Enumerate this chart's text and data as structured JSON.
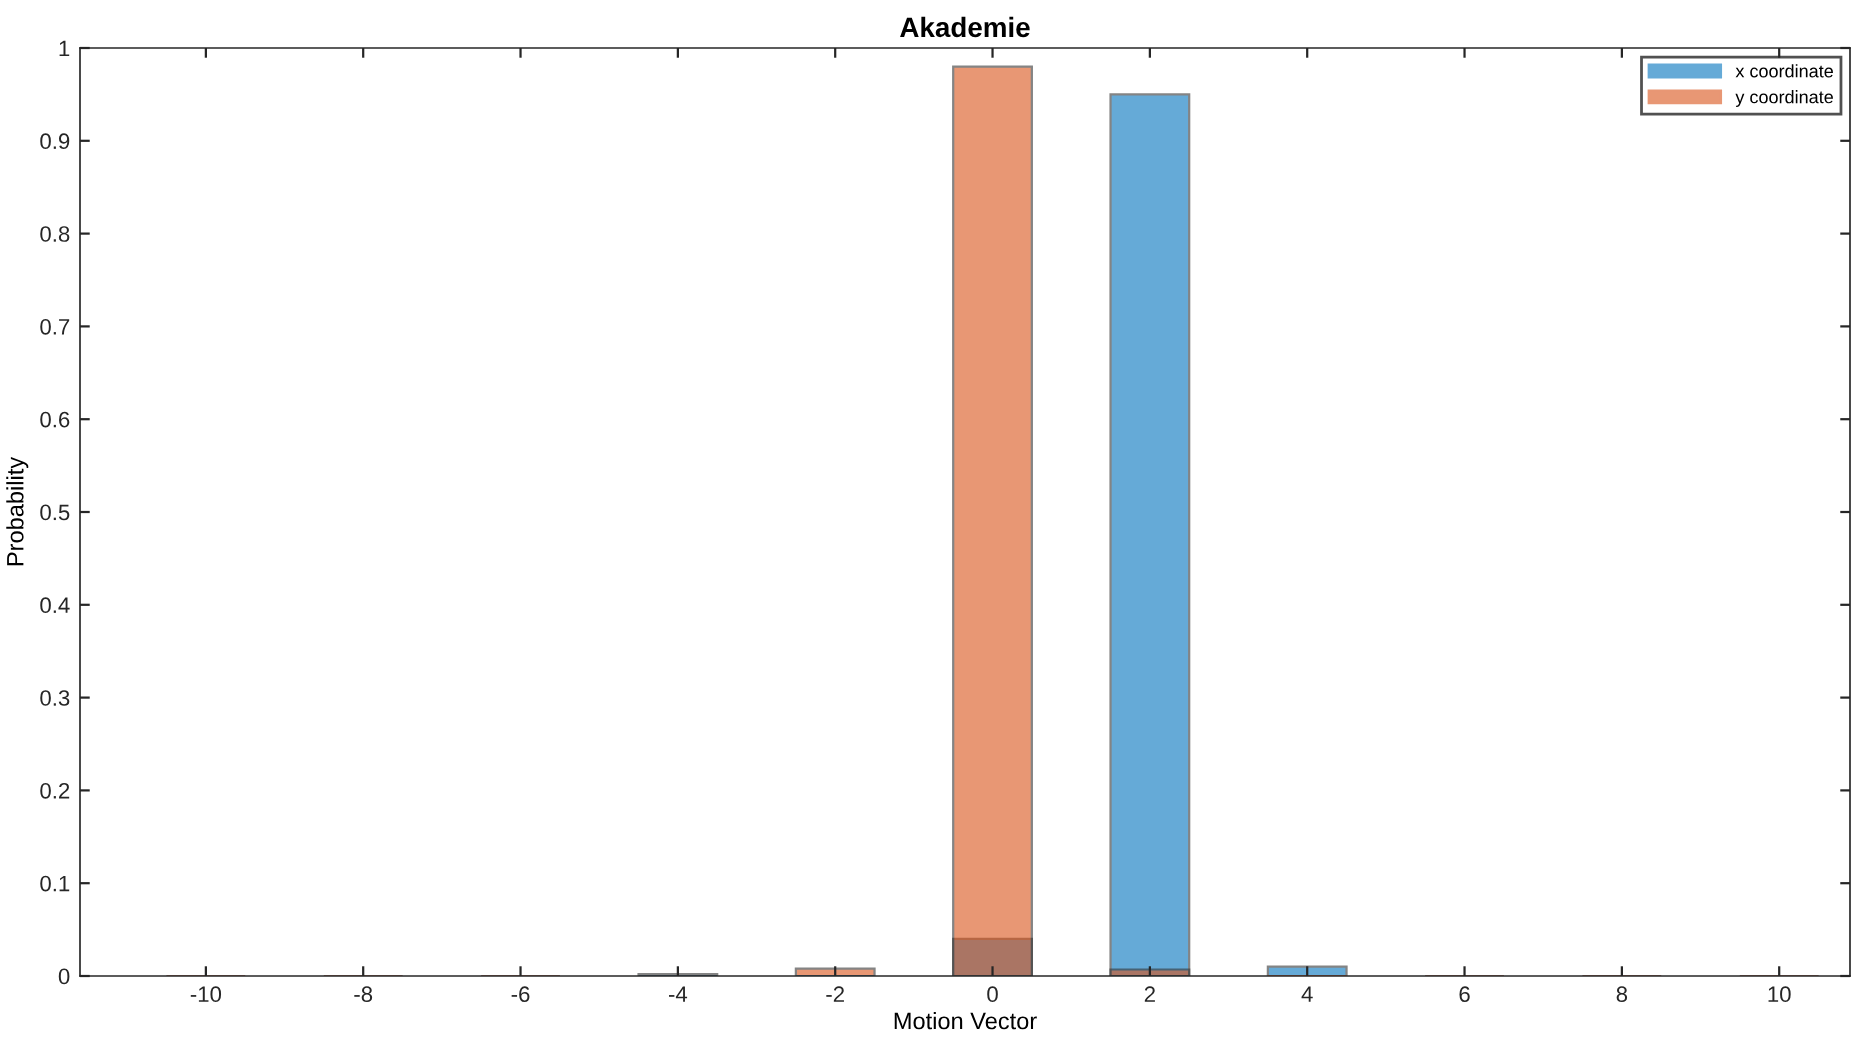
{
  "chart_data": {
    "type": "bar",
    "title": "Akademie",
    "xlabel": "Motion Vector",
    "ylabel": "Probability",
    "x": [
      -10,
      -8,
      -6,
      -4,
      -2,
      0,
      2,
      4,
      6,
      8,
      10
    ],
    "series": [
      {
        "name": "x coordinate",
        "color": "#0072bd",
        "values": [
          0,
          0,
          0,
          0,
          0,
          0.04,
          0.95,
          0.01,
          0,
          0,
          0
        ]
      },
      {
        "name": "y coordinate",
        "color": "#d95319",
        "values": [
          0,
          0,
          0,
          0.002,
          0.008,
          0.98,
          0.007,
          0,
          0,
          0,
          0
        ]
      }
    ],
    "xlim": [
      -11.6,
      10.9
    ],
    "xticks": [
      -10,
      -8,
      -6,
      -4,
      -2,
      0,
      2,
      4,
      6,
      8,
      10
    ],
    "ylim": [
      0,
      1
    ],
    "yticks": [
      0,
      0.1,
      0.2,
      0.3,
      0.4,
      0.5,
      0.6,
      0.7,
      0.8,
      0.9,
      1
    ],
    "grid": false,
    "legend": "top right"
  }
}
